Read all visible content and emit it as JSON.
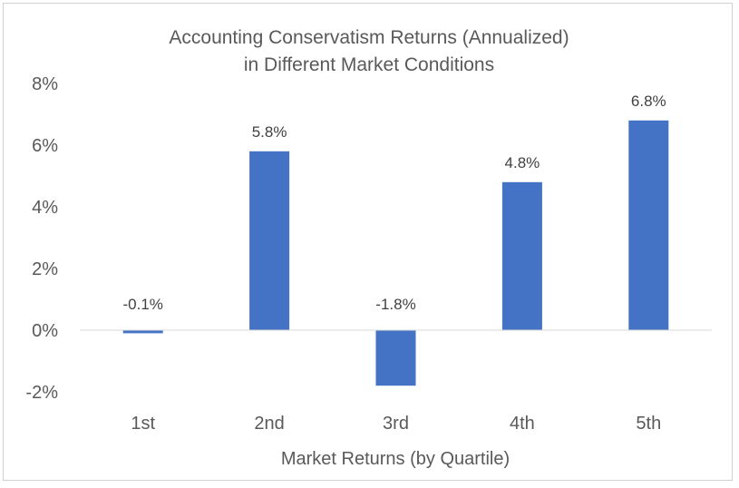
{
  "chart_data": {
    "type": "bar",
    "title_lines": [
      "Accounting Conservatism Returns (Annualized)",
      "in Different Market Conditions"
    ],
    "xlabel": "Market Returns (by Quartile)",
    "ylabel": "",
    "categories": [
      "1st",
      "2nd",
      "3rd",
      "4th",
      "5th"
    ],
    "values": [
      -0.1,
      5.8,
      -1.8,
      4.8,
      6.8
    ],
    "data_labels": [
      "-0.1%",
      "5.8%",
      "-1.8%",
      "4.8%",
      "6.8%"
    ],
    "ylim": [
      -2,
      8
    ],
    "yticks": [
      8,
      6,
      4,
      2,
      0,
      -2
    ],
    "ytick_labels": [
      "8%",
      "6%",
      "4%",
      "2%",
      "0%",
      "-2%"
    ],
    "bar_color": "#4472c4",
    "grid": false,
    "legend": "none"
  }
}
